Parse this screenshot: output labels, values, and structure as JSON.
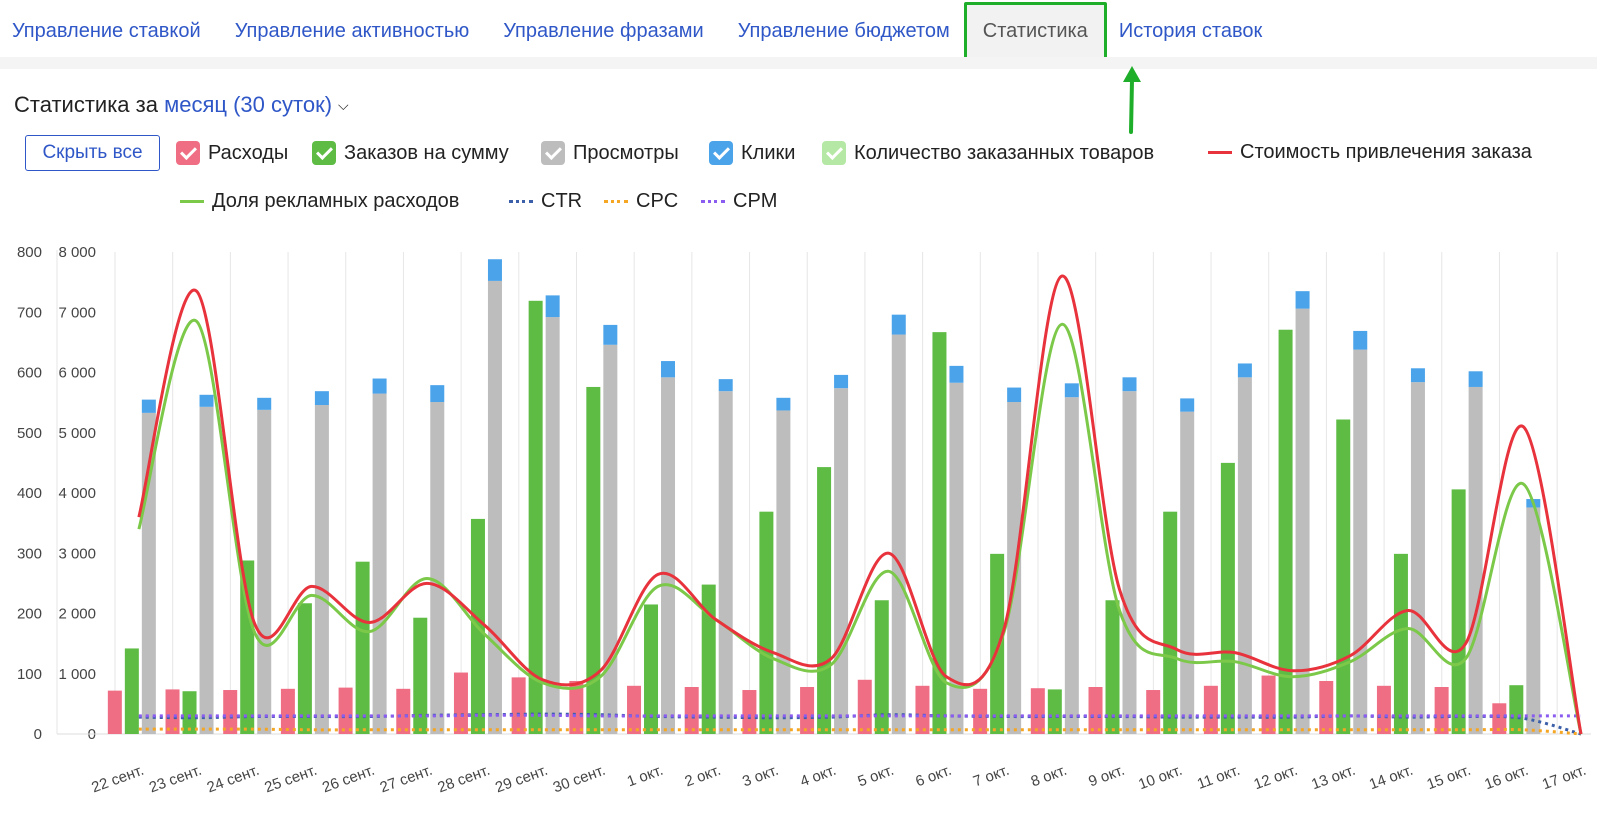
{
  "tabs": [
    {
      "label": "Управление ставкой"
    },
    {
      "label": "Управление активностью"
    },
    {
      "label": "Управление фразами"
    },
    {
      "label": "Управление бюджетом"
    },
    {
      "label": "Статистика"
    },
    {
      "label": "История ставок"
    }
  ],
  "active_tab_index": 4,
  "header": {
    "prefix": "Статистика за",
    "period": "месяц (30 суток)"
  },
  "hide_all_label": "Скрыть все",
  "legend": [
    {
      "label": "Расходы",
      "kind": "checkbox",
      "color": "#f06e84"
    },
    {
      "label": "Заказов на сумму",
      "kind": "checkbox",
      "color": "#5ebc45"
    },
    {
      "label": "Просмотры",
      "kind": "checkbox",
      "color": "#bdbdbd"
    },
    {
      "label": "Клики",
      "kind": "checkbox",
      "color": "#4ba3ea"
    },
    {
      "label": "Количество заказанных товаров",
      "kind": "checkbox",
      "color": "#b6e8a5"
    },
    {
      "label": "Стоимость привлечения заказа",
      "kind": "line",
      "color": "#e8323c"
    },
    {
      "label": "Доля рекламных расходов",
      "kind": "line",
      "color": "#7cc94a"
    },
    {
      "label": "CTR",
      "kind": "dotted",
      "color": "#3b5fa8"
    },
    {
      "label": "CPC",
      "kind": "dotted",
      "color": "#f5a623"
    },
    {
      "label": "CPM",
      "kind": "dotted",
      "color": "#8a5cf0"
    }
  ],
  "chart_data": {
    "type": "bar",
    "categories": [
      "22 сент.",
      "23 сент.",
      "24 сент.",
      "25 сент.",
      "26 сент.",
      "27 сент.",
      "28 сент.",
      "29 сент.",
      "30 сент.",
      "1 окт.",
      "2 окт.",
      "3 окт.",
      "4 окт.",
      "5 окт.",
      "6 окт.",
      "7 окт.",
      "8 окт.",
      "9 окт.",
      "10 окт.",
      "11 окт.",
      "12 окт.",
      "13 окт.",
      "14 окт.",
      "15 окт.",
      "16 окт.",
      "17 окт."
    ],
    "y_left": {
      "ticks": [
        "0",
        "100",
        "200",
        "300",
        "400",
        "500",
        "600",
        "700",
        "800"
      ],
      "range": [
        0,
        800
      ]
    },
    "y_right": {
      "ticks": [
        "0",
        "1 000",
        "2 000",
        "3 000",
        "4 000",
        "5 000",
        "6 000",
        "7 000",
        "8 000"
      ],
      "range": [
        0,
        8000
      ]
    },
    "grid": "vertical",
    "bars": [
      {
        "name": "Расходы",
        "axis": "left",
        "color": "#f06e84",
        "values": [
          72,
          74,
          73,
          75,
          77,
          75,
          102,
          94,
          88,
          80,
          78,
          73,
          78,
          90,
          80,
          75,
          76,
          78,
          73,
          80,
          97,
          88,
          80,
          78,
          51,
          0
        ]
      },
      {
        "name": "Заказов на сумму",
        "axis": "right",
        "color": "#5ebc45",
        "values": [
          1420,
          710,
          2880,
          2170,
          2860,
          1930,
          3570,
          7190,
          5760,
          2150,
          2480,
          3690,
          4430,
          2220,
          6670,
          2990,
          740,
          2220,
          3690,
          4500,
          6710,
          5220,
          2990,
          4060,
          810,
          0
        ]
      },
      {
        "name": "Просмотры",
        "axis": "right",
        "color": "#bdbdbd",
        "values": [
          5330,
          5430,
          5380,
          5460,
          5650,
          5510,
          7520,
          6920,
          6460,
          5920,
          5690,
          5370,
          5740,
          6630,
          5830,
          5510,
          5590,
          5690,
          5350,
          5920,
          7060,
          6380,
          5840,
          5760,
          3760,
          0
        ]
      },
      {
        "name": "Клики",
        "axis": "right",
        "color": "#4ba3ea",
        "values": [
          220,
          200,
          200,
          230,
          250,
          280,
          360,
          360,
          330,
          270,
          200,
          210,
          220,
          330,
          280,
          240,
          230,
          230,
          220,
          230,
          290,
          310,
          230,
          260,
          140,
          0
        ]
      }
    ],
    "lines": [
      {
        "name": "Стоимость привлечения заказа",
        "axis": "left",
        "color": "#e8323c",
        "style": "solid",
        "values": [
          360,
          735,
          185,
          245,
          185,
          250,
          180,
          90,
          105,
          265,
          190,
          135,
          125,
          300,
          95,
          175,
          760,
          240,
          140,
          135,
          105,
          130,
          205,
          150,
          510,
          0
        ]
      },
      {
        "name": "Доля рекламных расходов",
        "axis": "left",
        "color": "#7cc94a",
        "style": "solid",
        "values": [
          340,
          685,
          170,
          230,
          170,
          258,
          165,
          85,
          95,
          245,
          190,
          125,
          115,
          270,
          85,
          170,
          680,
          205,
          125,
          120,
          95,
          120,
          175,
          125,
          415,
          0
        ]
      },
      {
        "name": "CTR",
        "axis": "left",
        "color": "#3b5fa8",
        "style": "dotted",
        "values": [
          28,
          27,
          29,
          29,
          29,
          31,
          32,
          33,
          32,
          29,
          28,
          27,
          28,
          32,
          30,
          29,
          29,
          29,
          28,
          28,
          28,
          30,
          28,
          29,
          26,
          0
        ]
      },
      {
        "name": "CPC",
        "axis": "left",
        "color": "#f5a623",
        "style": "dotted",
        "values": [
          8,
          8,
          8,
          7,
          7,
          7,
          7,
          7,
          7,
          7,
          7,
          7,
          7,
          7,
          7,
          7,
          7,
          7,
          7,
          7,
          7,
          7,
          7,
          7,
          7,
          0
        ]
      },
      {
        "name": "CPM",
        "axis": "left",
        "color": "#8a5cf0",
        "style": "dotted",
        "values": [
          30,
          30,
          30,
          30,
          30,
          30,
          31,
          31,
          30,
          30,
          30,
          30,
          30,
          30,
          30,
          30,
          30,
          30,
          30,
          30,
          30,
          30,
          30,
          30,
          30,
          30
        ]
      }
    ]
  }
}
